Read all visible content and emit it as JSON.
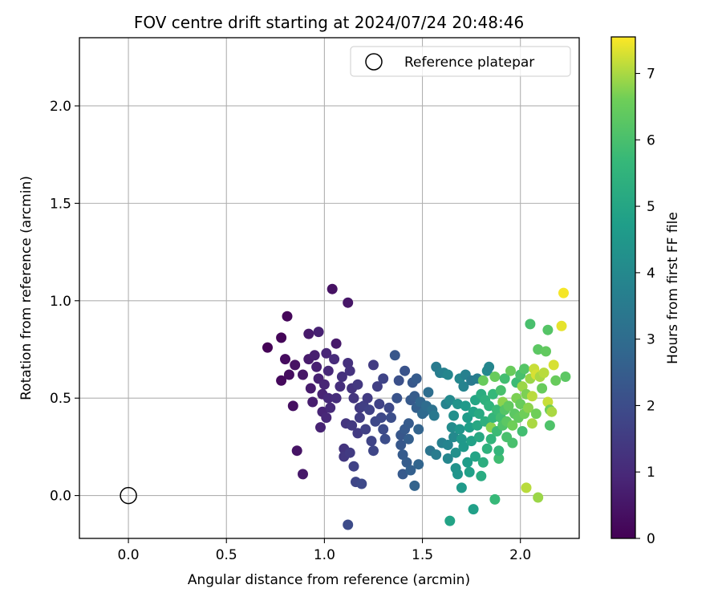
{
  "chart_data": {
    "type": "scatter",
    "title": "FOV centre drift starting at 2024/07/24 20:48:46",
    "xlabel": "Angular distance from reference (arcmin)",
    "ylabel": "Rotation from reference (arcmin)",
    "xlim": [
      -0.25,
      2.3
    ],
    "ylim": [
      -0.22,
      2.35
    ],
    "xticks": [
      0.0,
      0.5,
      1.0,
      1.5,
      2.0
    ],
    "yticks": [
      0.0,
      0.5,
      1.0,
      1.5,
      2.0
    ],
    "xtick_labels": [
      "0.0",
      "0.5",
      "1.0",
      "1.5",
      "2.0"
    ],
    "ytick_labels": [
      "0.0",
      "0.5",
      "1.0",
      "1.5",
      "2.0"
    ],
    "grid": true,
    "colormap": "viridis",
    "colorbar": {
      "label": "Hours from first FF file",
      "range": [
        0,
        7.55
      ],
      "ticks": [
        0,
        1,
        2,
        3,
        4,
        5,
        6,
        7
      ],
      "tick_labels": [
        "0",
        "1",
        "2",
        "3",
        "4",
        "5",
        "6",
        "7"
      ]
    },
    "legend": {
      "placement": "top-right",
      "entries": [
        {
          "label": "Reference platepar",
          "marker": "open-circle"
        }
      ]
    },
    "reference": {
      "x": 0.0,
      "y": 0.0
    },
    "point_fields": [
      "x",
      "y",
      "hours"
    ],
    "points": [
      [
        0.71,
        0.76,
        0.05
      ],
      [
        0.78,
        0.81,
        0.1
      ],
      [
        0.81,
        0.92,
        0.15
      ],
      [
        0.78,
        0.59,
        0.2
      ],
      [
        0.8,
        0.7,
        0.25
      ],
      [
        0.82,
        0.62,
        0.3
      ],
      [
        0.84,
        0.46,
        0.35
      ],
      [
        0.85,
        0.67,
        0.4
      ],
      [
        0.86,
        0.23,
        0.45
      ],
      [
        0.89,
        0.62,
        0.5
      ],
      [
        0.89,
        0.11,
        0.55
      ],
      [
        0.92,
        0.83,
        0.6
      ],
      [
        0.92,
        0.7,
        0.62
      ],
      [
        0.93,
        0.55,
        0.65
      ],
      [
        0.94,
        0.48,
        0.7
      ],
      [
        0.95,
        0.72,
        0.72
      ],
      [
        0.96,
        0.66,
        0.75
      ],
      [
        0.97,
        0.84,
        0.78
      ],
      [
        0.97,
        0.6,
        0.8
      ],
      [
        0.98,
        0.35,
        0.82
      ],
      [
        0.99,
        0.52,
        0.85
      ],
      [
        0.99,
        0.43,
        0.88
      ],
      [
        1.0,
        0.57,
        0.9
      ],
      [
        1.01,
        0.73,
        0.92
      ],
      [
        1.01,
        0.4,
        0.95
      ],
      [
        1.02,
        0.64,
        0.98
      ],
      [
        1.02,
        0.5,
        1.0
      ],
      [
        1.03,
        0.45,
        1.02
      ],
      [
        1.04,
        1.06,
        0.4
      ],
      [
        1.05,
        0.7,
        1.05
      ],
      [
        1.06,
        0.5,
        1.1
      ],
      [
        1.06,
        0.78,
        0.6
      ],
      [
        1.08,
        0.56,
        1.15
      ],
      [
        1.09,
        0.61,
        1.2
      ],
      [
        1.1,
        0.24,
        1.3
      ],
      [
        1.1,
        0.2,
        1.4
      ],
      [
        1.11,
        0.37,
        1.35
      ],
      [
        1.12,
        0.99,
        0.5
      ],
      [
        1.12,
        0.68,
        1.2
      ],
      [
        1.13,
        0.64,
        1.25
      ],
      [
        1.13,
        0.22,
        1.5
      ],
      [
        1.14,
        0.55,
        1.3
      ],
      [
        1.14,
        0.36,
        1.45
      ],
      [
        1.15,
        0.5,
        1.35
      ],
      [
        1.15,
        0.15,
        1.7
      ],
      [
        1.16,
        0.07,
        1.8
      ],
      [
        1.17,
        0.57,
        1.4
      ],
      [
        1.17,
        0.32,
        1.5
      ],
      [
        1.18,
        0.4,
        1.55
      ],
      [
        1.18,
        0.45,
        1.45
      ],
      [
        1.19,
        0.06,
        1.9
      ],
      [
        1.2,
        0.46,
        1.6
      ],
      [
        1.21,
        0.34,
        1.65
      ],
      [
        1.22,
        0.5,
        1.5
      ],
      [
        1.23,
        0.44,
        1.7
      ],
      [
        1.24,
        0.28,
        1.75
      ],
      [
        1.25,
        0.67,
        1.5
      ],
      [
        1.25,
        0.23,
        1.8
      ],
      [
        1.26,
        0.38,
        1.85
      ],
      [
        1.27,
        0.56,
        1.6
      ],
      [
        1.28,
        0.47,
        1.7
      ],
      [
        1.29,
        0.4,
        1.9
      ],
      [
        1.3,
        0.34,
        1.95
      ],
      [
        1.3,
        0.6,
        1.75
      ],
      [
        1.31,
        0.29,
        2.0
      ],
      [
        1.33,
        0.45,
        1.85
      ],
      [
        1.34,
        0.4,
        2.05
      ],
      [
        1.12,
        -0.15,
        1.95
      ],
      [
        1.36,
        0.72,
        2.3
      ],
      [
        1.37,
        0.5,
        2.2
      ],
      [
        1.38,
        0.59,
        2.1
      ],
      [
        1.39,
        0.31,
        2.3
      ],
      [
        1.39,
        0.26,
        2.35
      ],
      [
        1.4,
        0.11,
        2.4
      ],
      [
        1.4,
        0.21,
        2.45
      ],
      [
        1.41,
        0.64,
        2.2
      ],
      [
        1.41,
        0.34,
        2.4
      ],
      [
        1.42,
        0.17,
        2.5
      ],
      [
        1.43,
        0.37,
        2.45
      ],
      [
        1.43,
        0.29,
        2.55
      ],
      [
        1.44,
        0.13,
        2.6
      ],
      [
        1.44,
        0.49,
        2.4
      ],
      [
        1.45,
        0.58,
        2.35
      ],
      [
        1.46,
        0.51,
        2.5
      ],
      [
        1.46,
        0.05,
        2.7
      ],
      [
        1.47,
        0.6,
        2.45
      ],
      [
        1.47,
        0.45,
        2.6
      ],
      [
        1.48,
        0.34,
        2.7
      ],
      [
        1.48,
        0.16,
        2.75
      ],
      [
        1.49,
        0.48,
        2.8
      ],
      [
        1.5,
        0.42,
        2.85
      ],
      [
        1.51,
        0.43,
        2.9
      ],
      [
        1.52,
        0.46,
        3.0
      ],
      [
        1.53,
        0.53,
        3.05
      ],
      [
        1.54,
        0.23,
        3.3
      ],
      [
        1.55,
        0.44,
        3.2
      ],
      [
        1.56,
        0.41,
        3.4
      ],
      [
        1.57,
        0.66,
        3.5
      ],
      [
        1.57,
        0.21,
        3.55
      ],
      [
        1.59,
        0.63,
        3.6
      ],
      [
        1.6,
        0.27,
        3.7
      ],
      [
        1.61,
        0.63,
        3.75
      ],
      [
        1.62,
        0.47,
        3.8
      ],
      [
        1.63,
        0.19,
        3.9
      ],
      [
        1.63,
        0.26,
        3.85
      ],
      [
        1.64,
        -0.13,
        4.9
      ],
      [
        1.64,
        0.49,
        4.0
      ],
      [
        1.65,
        0.35,
        4.1
      ],
      [
        1.66,
        0.41,
        4.2
      ],
      [
        1.66,
        0.3,
        4.0
      ],
      [
        1.67,
        0.14,
        4.3
      ],
      [
        1.67,
        0.22,
        4.25
      ],
      [
        1.68,
        0.11,
        4.4
      ],
      [
        1.68,
        0.47,
        4.35
      ],
      [
        1.69,
        0.6,
        3.9
      ],
      [
        1.69,
        0.34,
        4.4
      ],
      [
        1.7,
        0.04,
        4.6
      ],
      [
        1.7,
        0.29,
        4.5
      ],
      [
        1.71,
        0.25,
        4.55
      ],
      [
        1.71,
        0.56,
        3.8
      ],
      [
        1.72,
        0.62,
        3.7
      ],
      [
        1.72,
        0.46,
        4.6
      ],
      [
        1.73,
        0.4,
        4.65
      ],
      [
        1.73,
        0.17,
        4.7
      ],
      [
        1.74,
        0.35,
        4.75
      ],
      [
        1.74,
        0.12,
        4.8
      ],
      [
        1.75,
        0.59,
        3.5
      ],
      [
        1.75,
        0.28,
        4.85
      ],
      [
        1.76,
        -0.07,
        4.8
      ],
      [
        1.76,
        0.43,
        4.9
      ],
      [
        1.77,
        0.2,
        4.95
      ],
      [
        1.77,
        0.49,
        5.0
      ],
      [
        1.78,
        0.36,
        5.05
      ],
      [
        1.78,
        0.6,
        3.6
      ],
      [
        1.79,
        0.3,
        5.1
      ],
      [
        1.79,
        0.42,
        5.15
      ],
      [
        1.8,
        0.1,
        5.2
      ],
      [
        1.8,
        0.52,
        5.25
      ],
      [
        1.81,
        0.17,
        5.3
      ],
      [
        1.81,
        0.59,
        6.5
      ],
      [
        1.82,
        0.38,
        5.35
      ],
      [
        1.82,
        0.49,
        5.4
      ],
      [
        1.83,
        0.64,
        4.0
      ],
      [
        1.83,
        0.24,
        5.45
      ],
      [
        1.84,
        0.66,
        3.9
      ],
      [
        1.84,
        0.46,
        5.5
      ],
      [
        1.85,
        0.35,
        6.8
      ],
      [
        1.85,
        0.29,
        5.55
      ],
      [
        1.86,
        0.4,
        5.6
      ],
      [
        1.86,
        0.52,
        5.65
      ],
      [
        1.87,
        0.61,
        6.5
      ],
      [
        1.87,
        -0.02,
        5.7
      ],
      [
        1.88,
        0.44,
        5.75
      ],
      [
        1.88,
        0.33,
        5.8
      ],
      [
        1.89,
        0.19,
        5.85
      ],
      [
        1.89,
        0.23,
        5.6
      ],
      [
        1.9,
        0.4,
        5.9
      ],
      [
        1.9,
        0.54,
        6.0
      ],
      [
        1.91,
        0.48,
        6.8
      ],
      [
        1.91,
        0.36,
        6.1
      ],
      [
        1.92,
        0.6,
        5.9
      ],
      [
        1.92,
        0.44,
        6.2
      ],
      [
        1.93,
        0.3,
        6.0
      ],
      [
        1.93,
        0.38,
        6.3
      ],
      [
        1.94,
        0.46,
        6.4
      ],
      [
        1.95,
        0.64,
        6.5
      ],
      [
        1.96,
        0.36,
        6.6
      ],
      [
        1.96,
        0.27,
        6.0
      ],
      [
        1.97,
        0.42,
        6.3
      ],
      [
        1.98,
        0.5,
        6.7
      ],
      [
        1.98,
        0.58,
        5.8
      ],
      [
        1.99,
        0.4,
        6.4
      ],
      [
        2.0,
        0.47,
        6.5
      ],
      [
        2.0,
        0.62,
        6.0
      ],
      [
        2.01,
        0.56,
        6.9
      ],
      [
        2.01,
        0.33,
        5.9
      ],
      [
        2.02,
        0.65,
        6.2
      ],
      [
        2.02,
        0.42,
        6.6
      ],
      [
        2.03,
        0.04,
        7.1
      ],
      [
        2.03,
        0.52,
        6.7
      ],
      [
        2.04,
        0.45,
        6.8
      ],
      [
        2.05,
        0.88,
        6.0
      ],
      [
        2.05,
        0.6,
        6.9
      ],
      [
        2.06,
        0.37,
        7.0
      ],
      [
        2.06,
        0.51,
        7.1
      ],
      [
        2.07,
        0.65,
        7.2
      ],
      [
        2.08,
        0.42,
        6.6
      ],
      [
        2.08,
        0.62,
        7.3
      ],
      [
        2.09,
        -0.01,
        6.9
      ],
      [
        2.09,
        0.75,
        6.3
      ],
      [
        2.1,
        0.61,
        7.0
      ],
      [
        2.11,
        0.55,
        6.5
      ],
      [
        2.12,
        0.63,
        7.1
      ],
      [
        2.13,
        0.74,
        6.4
      ],
      [
        2.14,
        0.85,
        6.2
      ],
      [
        2.14,
        0.48,
        7.2
      ],
      [
        2.15,
        0.44,
        6.6
      ],
      [
        2.15,
        0.36,
        6.1
      ],
      [
        2.16,
        0.43,
        7.0
      ],
      [
        2.17,
        0.67,
        7.3
      ],
      [
        2.18,
        0.59,
        6.5
      ],
      [
        2.21,
        0.87,
        7.4
      ],
      [
        2.22,
        1.04,
        7.5
      ],
      [
        2.23,
        0.61,
        6.3
      ],
      [
        1.63,
        0.62,
        3.9
      ]
    ]
  }
}
